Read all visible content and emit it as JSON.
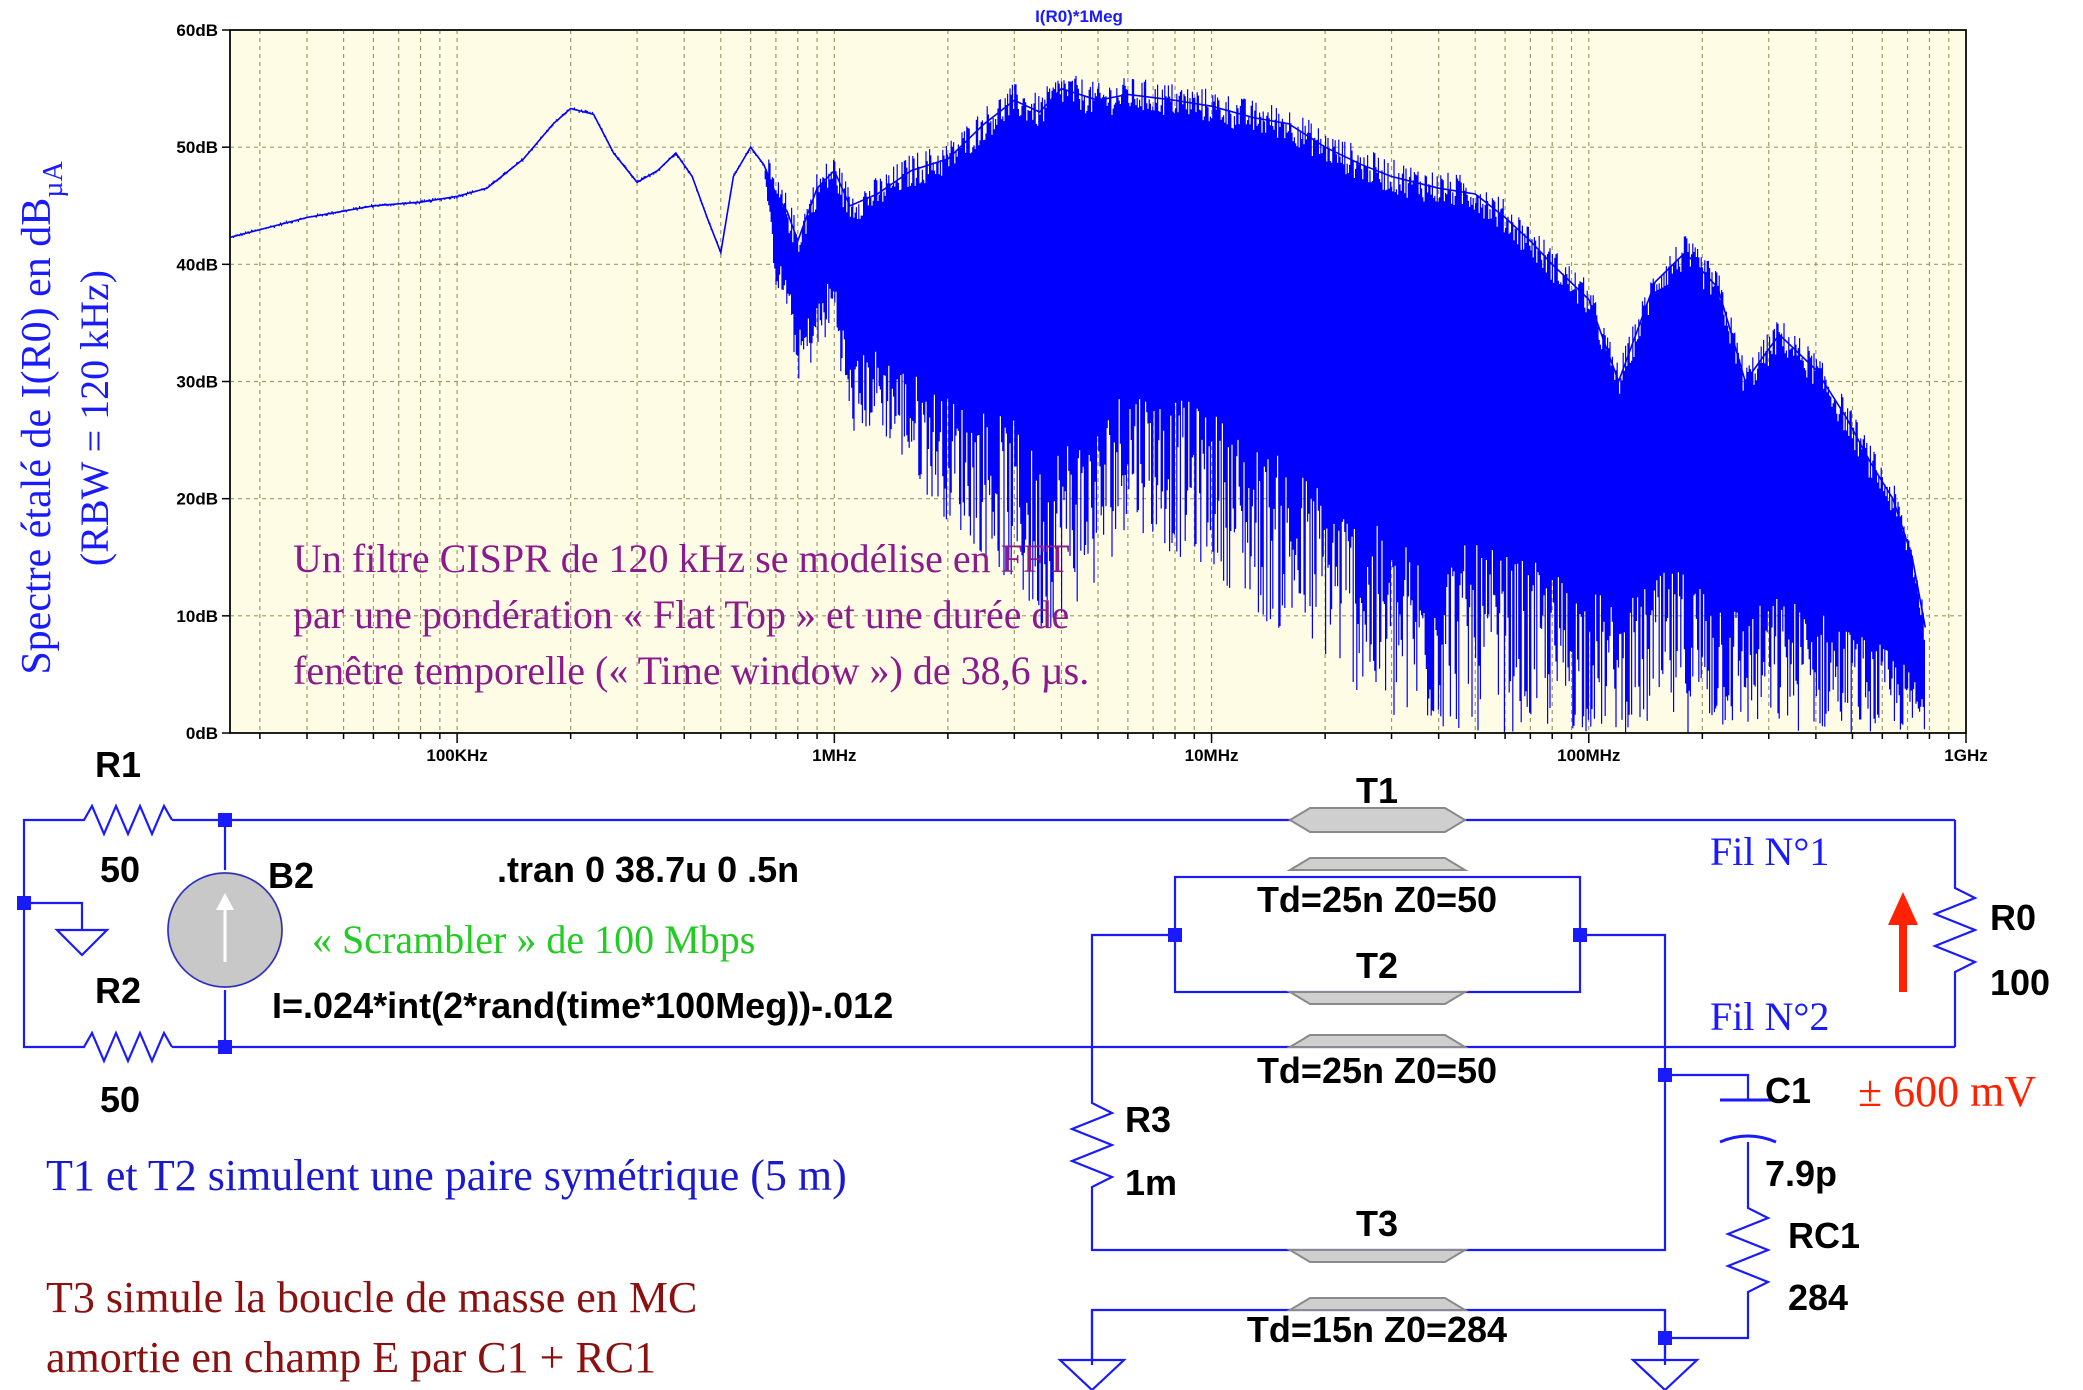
{
  "chart_data": {
    "type": "line",
    "title": "I(R0)*1Meg",
    "ylabel_main": "Spectre étalé de I(R0) en dB",
    "ylabel_sub": "µA",
    "ylabel_line2": "(RBW = 120 kHz)",
    "y_scale": "linear",
    "x_scale": "log",
    "xlim": [
      25000,
      1000000000
    ],
    "ylim": [
      0,
      60
    ],
    "y_ticks": [
      "0dB",
      "10dB",
      "20dB",
      "30dB",
      "40dB",
      "50dB",
      "60dB"
    ],
    "x_ticks": [
      "100KHz",
      "1MHz",
      "10MHz",
      "100MHz",
      "1GHz"
    ],
    "grid": true,
    "background_color": "#fffce6",
    "series": [
      {
        "color": "#0000ff",
        "x": [
          25000,
          40000,
          60000,
          80000,
          100000,
          120000,
          150000,
          180000,
          200000,
          230000,
          260000,
          300000,
          340000,
          380000,
          420000,
          460000,
          500000,
          540000,
          600000,
          650000,
          700000,
          750000,
          800000,
          900000,
          1000000,
          1100000,
          1300000,
          1600000,
          2000000,
          2500000,
          3000000,
          3500000,
          4000000,
          5000000,
          6000000,
          8000000,
          10000000,
          13000000,
          16000000,
          20000000,
          25000000,
          30000000,
          40000000,
          50000000,
          60000000,
          70000000,
          80000000,
          100000000,
          120000000,
          150000000,
          180000000,
          220000000,
          260000000,
          320000000,
          400000000,
          480000000,
          560000000,
          640000000,
          720000000,
          780000000
        ],
        "y": [
          42.3,
          44,
          45,
          45.3,
          45.8,
          46.5,
          49,
          52,
          53.3,
          52.8,
          49.5,
          47,
          48,
          49.5,
          47.5,
          44,
          41,
          47.5,
          50,
          48.5,
          46,
          44.5,
          42,
          46.5,
          48,
          45,
          46,
          48,
          49,
          52,
          54,
          53,
          55,
          54,
          54.5,
          54,
          53.5,
          52.5,
          52,
          50,
          48.5,
          47.5,
          46.5,
          46,
          44,
          42,
          40,
          37,
          30,
          38.5,
          41,
          38,
          30,
          34,
          31,
          27,
          23,
          20,
          15,
          9
        ],
        "envelope_min": [
          42.3,
          44,
          45,
          45.3,
          45.8,
          46.5,
          49,
          52,
          53.3,
          52.8,
          49.5,
          47,
          48,
          49.5,
          47.5,
          44,
          41,
          47.5,
          50,
          48.5,
          38,
          36,
          30,
          32,
          35,
          25,
          26,
          22,
          18,
          15,
          12,
          8,
          10,
          12,
          18,
          15,
          14,
          10,
          8,
          6,
          3,
          0,
          0,
          0,
          0,
          0,
          0,
          0,
          0,
          0,
          0,
          0,
          0,
          0,
          0,
          0,
          0,
          0,
          0,
          0
        ]
      }
    ],
    "annotations": [
      "Un filtre CISPR de 120 kHz se modélise en FFT",
      "par une pondération « Flat Top » et une durée de",
      "fenêtre temporelle (« Time window ») de 38,6 µs."
    ]
  },
  "schematic": {
    "components": {
      "r1_name": "R1",
      "r1_value": "50",
      "r2_name": "R2",
      "r2_value": "50",
      "b2_name": "B2",
      "b2_expr": "I=.024*int(2*rand(time*100Meg))-.012",
      "tran": ".tran 0 38.7u 0 .5n",
      "t1_name": "T1",
      "t1_value": "Td=25n Z0=50",
      "t2_name": "T2",
      "t2_value": "Td=25n Z0=50",
      "t3_name": "T3",
      "t3_value": "Td=15n Z0=284",
      "r3_name": "R3",
      "r3_value": "1m",
      "c1_name": "C1",
      "c1_value": "7.9p",
      "rc1_name": "RC1",
      "rc1_value": "284",
      "r0_name": "R0",
      "r0_value": "100"
    },
    "labels": {
      "scrambler": "« Scrambler » de 100 Mbps",
      "fil1": "Fil N°1",
      "fil2": "Fil N°2",
      "voltage": "± 600 mV",
      "note_t1t2": "T1 et T2 simulent une paire symétrique (5 m)",
      "note_t3_line1": "T3 simule la boucle de masse en MC",
      "note_t3_line2": "amortie en champ E par C1 + RC1"
    },
    "colors": {
      "wire": "#1a1aff",
      "scrambler_text": "#22cc22",
      "voltage_text": "#ff2200",
      "note_t1t2_text": "#1a1acc",
      "note_t3_text": "#8b1010",
      "annotation_text": "#8b1a8b",
      "ylabel_text": "#1a1aff"
    }
  }
}
